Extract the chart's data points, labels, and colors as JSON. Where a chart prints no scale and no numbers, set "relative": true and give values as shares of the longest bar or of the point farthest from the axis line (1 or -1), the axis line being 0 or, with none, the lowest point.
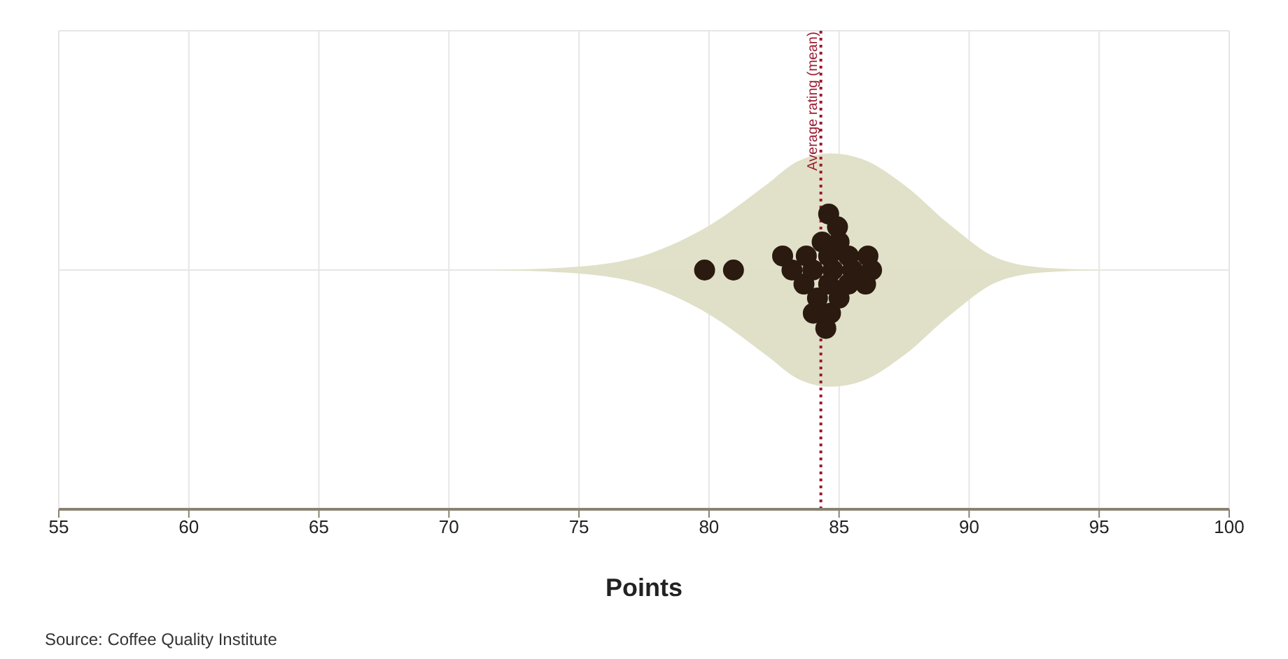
{
  "chart_data": {
    "type": "scatter",
    "relative": true,
    "xlabel": "Points",
    "annotations": [
      "Source: Coffee Quality Institute"
    ],
    "xlim": [
      55,
      100
    ],
    "xticks": [
      55,
      60,
      65,
      70,
      75,
      80,
      85,
      90,
      95,
      100
    ],
    "tick_labels": "x",
    "grid": true,
    "ref_lines": [
      {
        "axis": "x",
        "value": 84.3,
        "label": "Average rating (mean)",
        "color": "#9b1b30",
        "line_style": "dotted"
      }
    ],
    "series": [
      {
        "type": "area",
        "color": "#e1e1c9",
        "x": [
          71.6,
          75.0,
          77.7,
          80.0,
          82.2,
          83.4,
          84.67,
          85.9,
          87.5,
          89.3,
          91.1,
          92.9,
          95.3
        ],
        "values": [
          0,
          0.03,
          0.14,
          0.38,
          0.73,
          0.93,
          1,
          0.95,
          0.73,
          0.38,
          0.1,
          0.02,
          0
        ]
      },
      {
        "type": "area",
        "color": "#e0e0c8",
        "x": [
          71.6,
          75.0,
          77.7,
          80.0,
          82.2,
          83.4,
          84.67,
          85.9,
          87.5,
          89.3,
          91.1,
          92.9,
          95.3
        ],
        "values": [
          0,
          -0.03,
          -0.14,
          -0.38,
          -0.73,
          -0.93,
          -1,
          -0.95,
          -0.73,
          -0.38,
          -0.1,
          -0.02,
          0
        ]
      },
      {
        "color": "#2a1a10",
        "marker": "circle",
        "x": [
          79.83,
          80.94,
          82.83,
          83.19,
          83.74,
          83.65,
          83.99,
          84.17,
          84.01,
          84.35,
          84.6,
          84.94,
          85.0,
          84.6,
          84.76,
          84.6,
          84.67,
          84.49,
          85.0,
          85.36,
          85.52,
          85.36,
          86.11,
          86.25,
          86.02
        ],
        "values": [
          0,
          0,
          0.12,
          0,
          0.12,
          -0.12,
          0,
          -0.24,
          -0.37,
          0.24,
          0.48,
          0.37,
          0.24,
          0.12,
          0,
          -0.12,
          -0.37,
          -0.5,
          -0.24,
          0.12,
          0,
          -0.12,
          0.12,
          0,
          -0.12
        ]
      }
    ]
  }
}
